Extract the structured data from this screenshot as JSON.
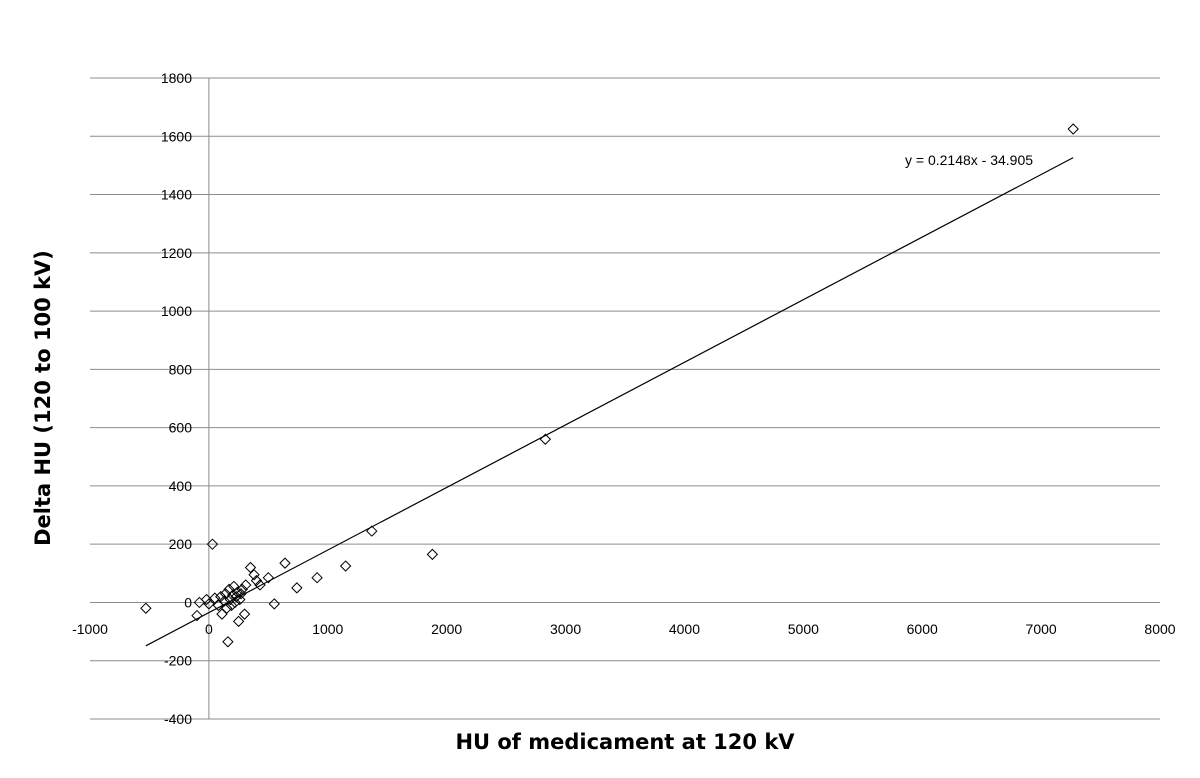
{
  "chart_data": {
    "type": "scatter",
    "title": "",
    "xlabel": "HU of medicament at 120 kV",
    "ylabel": "Delta HU (120 to 100 kV)",
    "xlim": [
      -1000,
      8000
    ],
    "ylim": [
      -400,
      1800
    ],
    "xticks": [
      -1000,
      0,
      1000,
      2000,
      3000,
      4000,
      5000,
      6000,
      7000,
      8000
    ],
    "yticks": [
      -400,
      -200,
      0,
      200,
      400,
      600,
      800,
      1000,
      1200,
      1400,
      1600,
      1800
    ],
    "grid": "horizontal",
    "marker": "diamond",
    "series": [
      {
        "points": [
          [
            -530,
            -20
          ],
          [
            -100,
            -45
          ],
          [
            -80,
            0
          ],
          [
            -20,
            10
          ],
          [
            0,
            -5
          ],
          [
            30,
            200
          ],
          [
            50,
            15
          ],
          [
            80,
            -10
          ],
          [
            100,
            20
          ],
          [
            110,
            -40
          ],
          [
            130,
            5
          ],
          [
            140,
            30
          ],
          [
            150,
            -20
          ],
          [
            160,
            -135
          ],
          [
            170,
            45
          ],
          [
            180,
            10
          ],
          [
            190,
            -10
          ],
          [
            200,
            25
          ],
          [
            210,
            55
          ],
          [
            220,
            0
          ],
          [
            230,
            20
          ],
          [
            240,
            35
          ],
          [
            250,
            -65
          ],
          [
            260,
            10
          ],
          [
            270,
            30
          ],
          [
            280,
            45
          ],
          [
            300,
            -40
          ],
          [
            310,
            60
          ],
          [
            350,
            120
          ],
          [
            380,
            95
          ],
          [
            400,
            75
          ],
          [
            430,
            60
          ],
          [
            500,
            85
          ],
          [
            550,
            -5
          ],
          [
            640,
            135
          ],
          [
            740,
            50
          ],
          [
            910,
            85
          ],
          [
            1150,
            125
          ],
          [
            1370,
            245
          ],
          [
            1880,
            165
          ],
          [
            2830,
            560
          ],
          [
            7270,
            1625
          ]
        ]
      }
    ],
    "trendline": {
      "slope": 0.2148,
      "intercept": -34.905,
      "x_range": [
        -530,
        7270
      ],
      "label": "y = 0.2148x - 34.905"
    }
  }
}
